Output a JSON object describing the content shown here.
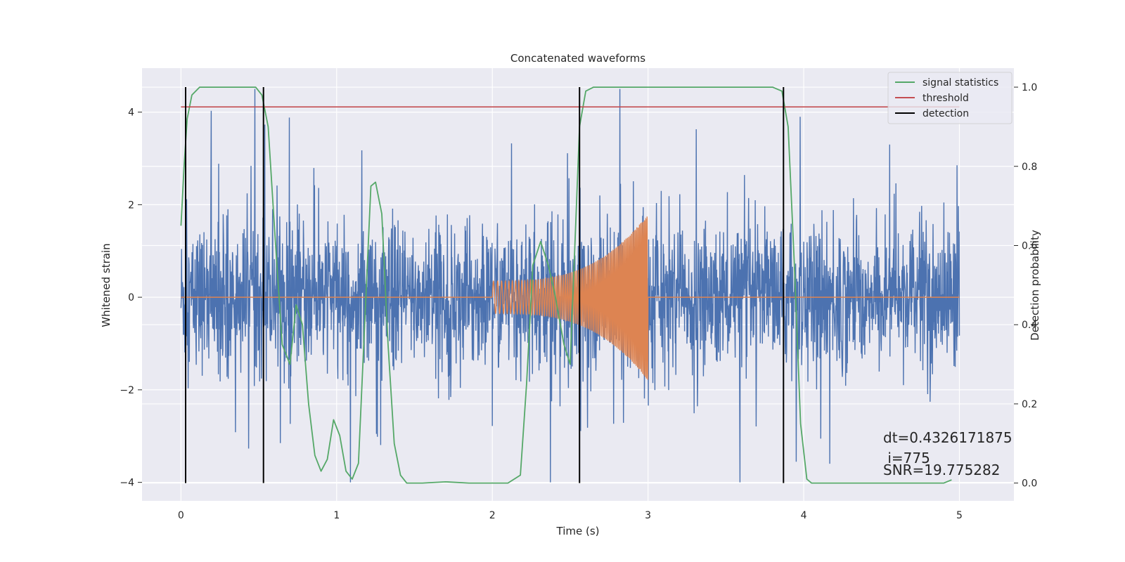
{
  "chart_data": {
    "type": "line",
    "title": "Concatenated waveforms",
    "xlabel": "Time (s)",
    "ylabel": "Whitened strain",
    "ylabel_right": "Detection probability",
    "xlim": [
      -0.25,
      5.35
    ],
    "ylim": [
      -4.4,
      4.95
    ],
    "ylim_right": [
      -0.045,
      1.048
    ],
    "x_ticks": [
      0,
      1,
      2,
      3,
      4,
      5
    ],
    "x_tick_labels": [
      "0",
      "1",
      "2",
      "3",
      "4",
      "5"
    ],
    "y_ticks": [
      -4,
      -2,
      0,
      2,
      4
    ],
    "y_tick_labels": [
      "−4",
      "−2",
      "0",
      "2",
      "4"
    ],
    "y_right_ticks": [
      0.0,
      0.2,
      0.4,
      0.6,
      0.8,
      1.0
    ],
    "y_right_tick_labels": [
      "0.0",
      "0.2",
      "0.4",
      "0.6",
      "0.8",
      "1.0"
    ],
    "grid": true,
    "legend_position": "top-right",
    "background_color": "#eaeaf2",
    "series": [
      {
        "name": "",
        "kind": "noisy strain",
        "color": "#4c72b0",
        "x_range": [
          0,
          5
        ],
        "baseline_amplitude": 1.1,
        "peak_amplitude": 4.5
      },
      {
        "name": "",
        "kind": "chirp",
        "color": "#dd8452",
        "x_range": [
          0,
          5
        ],
        "chirp_start": 2.0,
        "chirp_end": 3.0,
        "start_amplitude": 0.35,
        "end_amplitude": 1.8
      },
      {
        "name": "signal statistics",
        "axis": "right",
        "color": "#55a868",
        "x": [
          0,
          0.02,
          0.04,
          0.07,
          0.12,
          0.2,
          0.35,
          0.48,
          0.52,
          0.56,
          0.6,
          0.65,
          0.7,
          0.74,
          0.78,
          0.82,
          0.86,
          0.9,
          0.94,
          0.98,
          1.02,
          1.06,
          1.1,
          1.14,
          1.18,
          1.22,
          1.25,
          1.29,
          1.33,
          1.37,
          1.41,
          1.45,
          1.55,
          1.7,
          1.85,
          2.0,
          2.1,
          2.18,
          2.22,
          2.26,
          2.31,
          2.36,
          2.4,
          2.46,
          2.5,
          2.52,
          2.56,
          2.6,
          2.65,
          2.75,
          3.0,
          3.5,
          3.8,
          3.86,
          3.9,
          3.94,
          3.98,
          4.02,
          4.05,
          4.15,
          4.5,
          4.9,
          4.95
        ],
        "values": [
          0.65,
          0.8,
          0.92,
          0.98,
          1.0,
          1.0,
          1.0,
          1.0,
          0.98,
          0.9,
          0.65,
          0.35,
          0.3,
          0.45,
          0.4,
          0.2,
          0.07,
          0.03,
          0.06,
          0.16,
          0.12,
          0.03,
          0.01,
          0.05,
          0.4,
          0.75,
          0.76,
          0.68,
          0.35,
          0.1,
          0.02,
          0.0,
          0.0,
          0.003,
          0.0,
          0.0,
          0.0,
          0.02,
          0.25,
          0.55,
          0.61,
          0.55,
          0.48,
          0.35,
          0.3,
          0.5,
          0.9,
          0.99,
          1.0,
          1.0,
          1.0,
          1.0,
          1.0,
          0.99,
          0.9,
          0.55,
          0.15,
          0.01,
          0.0,
          0.0,
          0.0,
          0.0,
          0.008
        ]
      },
      {
        "name": "threshold",
        "axis": "right",
        "color": "#c44e52",
        "x": [
          0,
          5
        ],
        "values": [
          0.95,
          0.95
        ]
      },
      {
        "name": "detection",
        "axis": "right",
        "color": "#000000",
        "vertical_lines": [
          0.03,
          0.53,
          2.56,
          3.87
        ],
        "vline_range": [
          0.0,
          1.0
        ]
      }
    ],
    "annotations": {
      "dt": "dt=0.4326171875",
      "i": " i=775",
      "snr": "SNR=19.775282"
    }
  }
}
